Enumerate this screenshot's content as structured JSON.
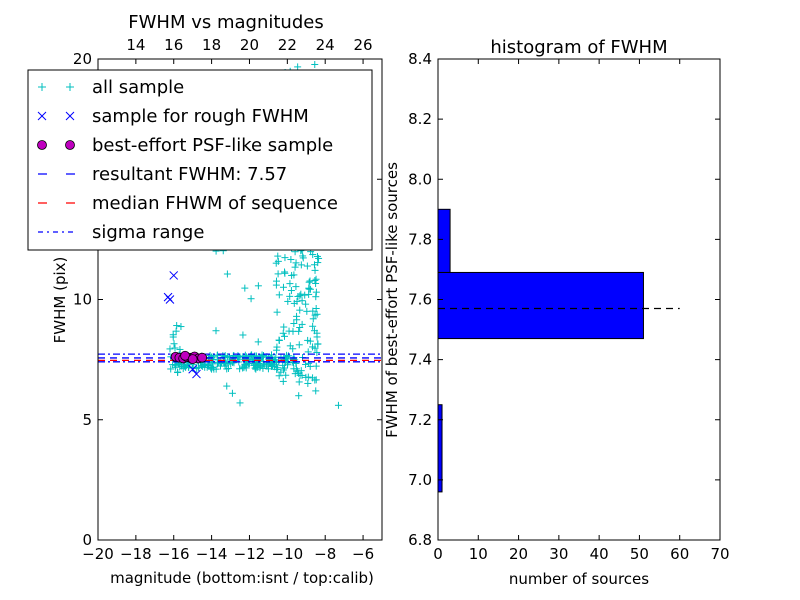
{
  "chart_data": [
    {
      "type": "scatter",
      "title": "FWHM vs magnitudes",
      "xlabel": "magnitude (bottom:isnt / top:calib)",
      "ylabel": "FWHM (pix)",
      "xlim": [
        -20,
        -5
      ],
      "ylim": [
        0,
        20
      ],
      "x_ticks": [
        -20,
        -18,
        -16,
        -14,
        -12,
        -10,
        -8,
        -6
      ],
      "x_tick_labels": [
        "−20",
        "−18",
        "−16",
        "−14",
        "−12",
        "−10",
        "−8",
        "−6"
      ],
      "y_ticks": [
        0,
        5,
        10,
        15,
        20
      ],
      "y_tick_labels": [
        "0",
        "5",
        "10",
        "15",
        "20"
      ],
      "top_xlim": [
        12,
        27
      ],
      "top_ticks": [
        14,
        16,
        18,
        20,
        22,
        24,
        26
      ],
      "top_tick_labels": [
        "14",
        "16",
        "18",
        "20",
        "22",
        "24",
        "26"
      ],
      "resultant_fwhm": 7.57,
      "median_fwhm": 7.47,
      "sigma_low": 7.41,
      "sigma_high": 7.73,
      "legend": {
        "placement": "top-left",
        "entries": [
          {
            "label": "all sample",
            "marker": "+",
            "color": "#00bfbf"
          },
          {
            "label": "sample for rough FWHM",
            "marker": "x",
            "color": "#0000ff"
          },
          {
            "label": "best-effort PSF-like sample",
            "marker": "o",
            "color": "#bf00bf"
          },
          {
            "label": "resultant FWHM: 7.57",
            "marker": "dashed",
            "color": "#0000ff"
          },
          {
            "label": "median FHWM of sequence",
            "marker": "dashed",
            "color": "#ff0000"
          },
          {
            "label": "sigma range",
            "marker": "dashdot",
            "color": "#0000ff"
          }
        ]
      },
      "series": [
        {
          "name": "sample for rough FWHM",
          "points": [
            [
              -16.3,
              10.1
            ],
            [
              -16.2,
              10.0
            ],
            [
              -16.0,
              11.0
            ],
            [
              -15.0,
              7.1
            ],
            [
              -14.8,
              6.9
            ],
            [
              -15.3,
              7.5
            ],
            [
              -15.6,
              7.6
            ]
          ]
        },
        {
          "name": "best-effort PSF-like sample",
          "points": [
            [
              -15.9,
              7.62
            ],
            [
              -15.7,
              7.58
            ],
            [
              -15.5,
              7.55
            ],
            [
              -15.3,
              7.6
            ],
            [
              -15.1,
              7.57
            ],
            [
              -14.9,
              7.63
            ],
            [
              -14.7,
              7.55
            ],
            [
              -14.5,
              7.58
            ],
            [
              -15.4,
              7.66
            ],
            [
              -15.0,
              7.52
            ]
          ]
        }
      ]
    },
    {
      "type": "bar",
      "orientation": "horizontal",
      "title": "histogram of FWHM",
      "xlabel": "number of sources",
      "ylabel": "FWHM of best-effort PSF-like sources",
      "xlim": [
        0,
        70
      ],
      "ylim": [
        6.8,
        8.4
      ],
      "x_ticks": [
        0,
        10,
        20,
        30,
        40,
        50,
        60,
        70
      ],
      "x_tick_labels": [
        "0",
        "10",
        "20",
        "30",
        "40",
        "50",
        "60",
        "70"
      ],
      "y_ticks": [
        6.8,
        7.0,
        7.2,
        7.4,
        7.6,
        7.8,
        8.0,
        8.2,
        8.4
      ],
      "y_tick_labels": [
        "6.8",
        "7.0",
        "7.2",
        "7.4",
        "7.6",
        "7.8",
        "8.0",
        "8.2",
        "8.4"
      ],
      "bins": [
        {
          "low": 6.96,
          "high": 7.25,
          "count": 1
        },
        {
          "low": 7.47,
          "high": 7.69,
          "count": 51
        },
        {
          "low": 7.69,
          "high": 7.9,
          "count": 3
        }
      ],
      "bar_color": "#0000ff",
      "reference_line": {
        "value": 7.57,
        "x_range": [
          0,
          60
        ],
        "style": "dashed",
        "color": "#000000"
      }
    }
  ]
}
